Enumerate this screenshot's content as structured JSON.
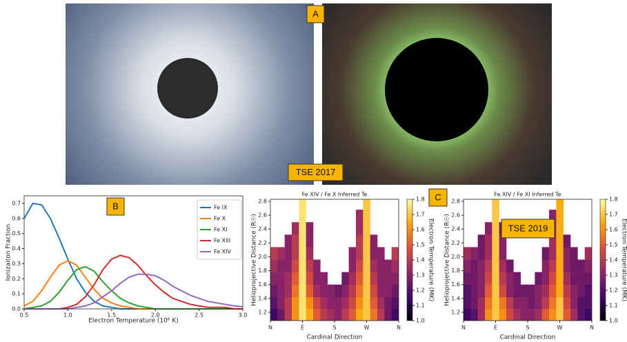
{
  "images": {
    "panel_label": "A",
    "caption": "TSE 2017"
  },
  "chart_data": [
    {
      "type": "line",
      "panel_label": "B",
      "xlabel": "Electron Temperature (10⁶ K)",
      "ylabel": "Ionizaiton Fraction",
      "x": [
        0.5,
        0.6,
        0.7,
        0.8,
        0.9,
        1.0,
        1.1,
        1.2,
        1.3,
        1.4,
        1.5,
        1.6,
        1.7,
        1.8,
        1.9,
        2.0,
        2.1,
        2.2,
        2.3,
        2.4,
        2.5,
        2.6,
        2.7,
        2.8,
        2.9,
        3.0
      ],
      "series": [
        {
          "name": "Fe IX",
          "color": "#1f77b4",
          "values": [
            0.6,
            0.7,
            0.69,
            0.6,
            0.47,
            0.33,
            0.2,
            0.11,
            0.05,
            0.02,
            0.01,
            0,
            0,
            0,
            0,
            0,
            0,
            0,
            0,
            0,
            0,
            0,
            0,
            0,
            0,
            0
          ]
        },
        {
          "name": "Fe X",
          "color": "#ff7f0e",
          "values": [
            0.02,
            0.05,
            0.12,
            0.21,
            0.29,
            0.32,
            0.29,
            0.21,
            0.13,
            0.07,
            0.04,
            0.02,
            0.01,
            0,
            0,
            0,
            0,
            0,
            0,
            0,
            0,
            0,
            0,
            0,
            0,
            0
          ]
        },
        {
          "name": "Fe XI",
          "color": "#2ca02c",
          "values": [
            0,
            0.01,
            0.02,
            0.05,
            0.11,
            0.19,
            0.26,
            0.28,
            0.25,
            0.18,
            0.12,
            0.07,
            0.04,
            0.02,
            0.01,
            0,
            0,
            0,
            0,
            0,
            0,
            0,
            0,
            0,
            0,
            0
          ]
        },
        {
          "name": "Fe XIII",
          "color": "#d62728",
          "values": [
            0,
            0,
            0,
            0,
            0,
            0.01,
            0.03,
            0.08,
            0.16,
            0.26,
            0.33,
            0.355,
            0.34,
            0.29,
            0.22,
            0.16,
            0.11,
            0.07,
            0.05,
            0.03,
            0.02,
            0.01,
            0.01,
            0.01,
            0,
            0
          ]
        },
        {
          "name": "Fe XIV",
          "color": "#9467bd",
          "values": [
            0,
            0,
            0,
            0,
            0,
            0,
            0.01,
            0.02,
            0.04,
            0.08,
            0.12,
            0.17,
            0.21,
            0.23,
            0.23,
            0.22,
            0.19,
            0.15,
            0.12,
            0.09,
            0.07,
            0.05,
            0.04,
            0.03,
            0.02,
            0.015
          ]
        }
      ],
      "xlim": [
        0.5,
        3.0
      ],
      "ylim": [
        0,
        0.75
      ],
      "xticks": [
        0.5,
        {
          "value": 1,
          "label": "1.0"
        },
        1.5,
        {
          "value": 2,
          "label": "2.0"
        },
        2.5,
        {
          "value": 3,
          "label": "3.0"
        }
      ],
      "yticks": [
        {
          "value": 0,
          "label": "0.0"
        },
        0.1,
        0.2,
        0.3,
        0.4,
        0.5,
        0.6,
        0.7
      ],
      "legend": "upper right",
      "grid": false
    },
    {
      "type": "heatmap",
      "panel_label": "C",
      "title": "Fe XIV / Fe X Inferred Te",
      "xlabel": "Cardinal Direction",
      "ylabel": "Helioprojective Distance (R☉)",
      "colorbar_label": "Electron Temperature (MK)",
      "cmap": "inferno",
      "xbins": [
        0,
        20,
        40,
        60,
        80,
        100,
        120,
        140,
        160,
        180,
        200,
        220,
        240,
        260,
        280,
        300,
        320,
        340,
        360
      ],
      "ybins": [
        1.08,
        1.25,
        1.42,
        1.6,
        1.78,
        1.96,
        2.14,
        2.32,
        2.5,
        2.68,
        2.86
      ],
      "z": [
        [
          1.15,
          1.25,
          1.4,
          1.6,
          1.75,
          1.65,
          1.5,
          1.4,
          1.35,
          1.3,
          1.4,
          1.5,
          1.65,
          1.7,
          1.55,
          1.4,
          1.25,
          1.15
        ],
        [
          1.2,
          1.3,
          1.4,
          1.6,
          1.75,
          1.6,
          1.45,
          1.35,
          1.3,
          1.3,
          1.35,
          1.45,
          1.6,
          1.7,
          1.5,
          1.35,
          1.25,
          1.2
        ],
        [
          1.25,
          1.3,
          1.35,
          1.55,
          1.75,
          1.5,
          1.35,
          1.3,
          1.3,
          1.25,
          1.3,
          1.4,
          1.55,
          1.7,
          1.45,
          1.3,
          1.3,
          1.25
        ],
        [
          1.3,
          1.3,
          1.35,
          1.5,
          1.75,
          1.45,
          1.3,
          1.3,
          null,
          null,
          1.25,
          1.35,
          1.5,
          1.7,
          1.4,
          1.3,
          1.3,
          1.3
        ],
        [
          1.35,
          1.3,
          1.3,
          1.45,
          1.75,
          1.4,
          1.3,
          null,
          null,
          null,
          null,
          1.3,
          1.45,
          1.7,
          1.35,
          1.3,
          1.3,
          1.35
        ],
        [
          1.4,
          1.35,
          1.3,
          1.4,
          1.75,
          1.35,
          null,
          null,
          null,
          null,
          null,
          1.3,
          1.4,
          1.7,
          1.3,
          1.3,
          null,
          1.4
        ],
        [
          null,
          null,
          1.3,
          1.4,
          1.75,
          1.3,
          null,
          null,
          null,
          null,
          null,
          null,
          1.4,
          1.7,
          1.3,
          null,
          null,
          null
        ],
        [
          null,
          null,
          null,
          1.35,
          1.75,
          1.3,
          null,
          null,
          null,
          null,
          null,
          null,
          1.35,
          1.7,
          null,
          null,
          null,
          null
        ],
        [
          null,
          null,
          null,
          null,
          1.75,
          null,
          null,
          null,
          null,
          null,
          null,
          null,
          1.35,
          1.7,
          null,
          null,
          null,
          null
        ],
        [
          null,
          null,
          null,
          null,
          1.75,
          null,
          null,
          null,
          null,
          null,
          null,
          null,
          null,
          1.7,
          null,
          null,
          null,
          null
        ]
      ],
      "xlim": [
        0,
        360
      ],
      "ylim": [
        1.08,
        2.83
      ],
      "clim": [
        1.0,
        1.8
      ],
      "xticks": [
        {
          "value": 0,
          "label": "N"
        },
        {
          "value": 90,
          "label": "E"
        },
        {
          "value": 180,
          "label": "S"
        },
        {
          "value": 270,
          "label": "W"
        },
        {
          "value": 360,
          "label": "N"
        }
      ],
      "yticks": [
        1.2,
        1.4,
        1.6,
        1.8,
        {
          "value": 2,
          "label": "2.0"
        },
        2.2,
        2.4,
        2.6,
        2.8
      ],
      "cticks": [
        {
          "value": 1,
          "label": "1.0"
        },
        1.1,
        1.2,
        1.3,
        1.4,
        1.5,
        1.6,
        1.7,
        1.8
      ]
    },
    {
      "type": "heatmap",
      "annotation": "TSE 2019",
      "title": "Fe XIV / Fe XI Inferred Te",
      "xlabel": "Cardinal Direction",
      "ylabel": "Helioprojective Distance (R☉)",
      "colorbar_label": "Electron Temperature (MK)",
      "cmap": "inferno",
      "xbins": [
        0,
        20,
        40,
        60,
        80,
        100,
        120,
        140,
        160,
        180,
        200,
        220,
        240,
        260,
        280,
        300,
        320,
        340,
        360
      ],
      "ybins": [
        1.08,
        1.25,
        1.42,
        1.6,
        1.78,
        1.96,
        2.14,
        2.32,
        2.5,
        2.68,
        2.86
      ],
      "z": [
        [
          1.15,
          1.2,
          1.35,
          1.6,
          1.7,
          1.6,
          1.45,
          1.35,
          1.3,
          1.3,
          1.35,
          1.5,
          1.6,
          1.7,
          1.5,
          1.35,
          1.2,
          1.15
        ],
        [
          1.2,
          1.25,
          1.35,
          1.55,
          1.7,
          1.55,
          1.4,
          1.3,
          1.3,
          1.25,
          1.3,
          1.4,
          1.55,
          1.7,
          1.45,
          1.3,
          1.2,
          1.2
        ],
        [
          1.2,
          1.25,
          1.3,
          1.5,
          1.7,
          1.45,
          1.3,
          1.25,
          1.25,
          1.25,
          1.3,
          1.35,
          1.5,
          1.65,
          1.4,
          1.3,
          1.25,
          1.2
        ],
        [
          1.25,
          1.25,
          1.3,
          1.45,
          1.7,
          1.4,
          1.3,
          1.25,
          null,
          null,
          1.25,
          1.3,
          1.45,
          1.65,
          1.35,
          1.25,
          1.25,
          1.25
        ],
        [
          1.3,
          1.25,
          1.3,
          1.4,
          1.7,
          1.35,
          1.25,
          null,
          null,
          null,
          null,
          1.3,
          1.4,
          1.65,
          1.3,
          1.25,
          1.25,
          1.3
        ],
        [
          1.35,
          1.3,
          1.25,
          1.35,
          1.7,
          1.3,
          null,
          null,
          null,
          null,
          null,
          1.25,
          1.35,
          1.65,
          1.3,
          1.25,
          null,
          1.35
        ],
        [
          null,
          null,
          1.25,
          1.35,
          1.7,
          1.3,
          null,
          null,
          null,
          null,
          null,
          null,
          1.35,
          1.65,
          1.25,
          null,
          null,
          null
        ],
        [
          null,
          null,
          null,
          1.3,
          1.7,
          1.25,
          null,
          null,
          null,
          null,
          null,
          null,
          1.3,
          1.65,
          null,
          null,
          null,
          null
        ],
        [
          null,
          null,
          null,
          null,
          1.7,
          null,
          null,
          null,
          null,
          null,
          null,
          null,
          1.3,
          1.65,
          null,
          null,
          null,
          null
        ],
        [
          null,
          null,
          null,
          null,
          1.7,
          null,
          null,
          null,
          null,
          null,
          null,
          null,
          null,
          1.65,
          null,
          null,
          null,
          null
        ]
      ],
      "xlim": [
        0,
        360
      ],
      "ylim": [
        1.08,
        2.83
      ],
      "clim": [
        1.0,
        1.8
      ],
      "xticks": [
        {
          "value": 0,
          "label": "N"
        },
        {
          "value": 90,
          "label": "E"
        },
        {
          "value": 180,
          "label": "S"
        },
        {
          "value": 270,
          "label": "W"
        },
        {
          "value": 360,
          "label": "N"
        }
      ],
      "yticks": [
        1.2,
        1.4,
        1.6,
        1.8,
        {
          "value": 2,
          "label": "2.0"
        },
        2.2,
        2.4,
        2.6,
        2.8
      ],
      "cticks": [
        {
          "value": 1,
          "label": "1.0"
        },
        1.1,
        1.2,
        1.3,
        1.4,
        1.5,
        1.6,
        1.7,
        1.8
      ]
    }
  ]
}
